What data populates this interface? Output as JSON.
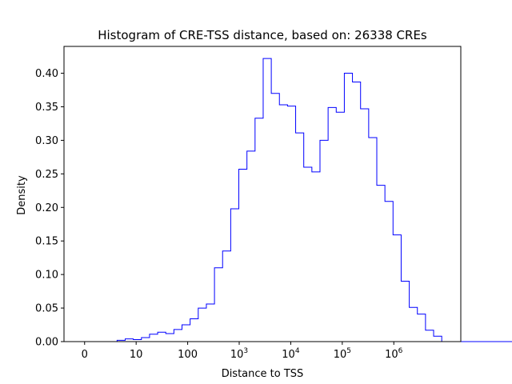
{
  "chart_data": {
    "type": "histogram",
    "title": "Histogram of CRE-TSS distance, based on: 26338 CREs",
    "xlabel": "Distance to TSS",
    "ylabel": "Density",
    "x_scale": "symlog",
    "xlim": [
      -0.4,
      7.3
    ],
    "ylim": [
      0,
      0.44
    ],
    "grid": false,
    "series_color": "#0000ff",
    "x_ticks": [
      {
        "value": 0,
        "label": "0"
      },
      {
        "value": 1,
        "label": "10"
      },
      {
        "value": 2,
        "label": "100"
      },
      {
        "value": 3,
        "label": "10",
        "sup": "3"
      },
      {
        "value": 4,
        "label": "10",
        "sup": "4"
      },
      {
        "value": 5,
        "label": "10",
        "sup": "5"
      },
      {
        "value": 6,
        "label": "10",
        "sup": "6"
      }
    ],
    "y_ticks": [
      {
        "value": 0.0,
        "label": "0.00"
      },
      {
        "value": 0.05,
        "label": "0.05"
      },
      {
        "value": 0.1,
        "label": "0.10"
      },
      {
        "value": 0.15,
        "label": "0.15"
      },
      {
        "value": 0.2,
        "label": "0.20"
      },
      {
        "value": 0.25,
        "label": "0.25"
      },
      {
        "value": 0.3,
        "label": "0.30"
      },
      {
        "value": 0.35,
        "label": "0.35"
      },
      {
        "value": 0.4,
        "label": "0.40"
      }
    ],
    "bin_start": 0.0,
    "bin_width": 0.1575,
    "densities": [
      0.0,
      0.0,
      0.0,
      0.0,
      0.002,
      0.004,
      0.003,
      0.006,
      0.011,
      0.014,
      0.012,
      0.018,
      0.025,
      0.034,
      0.05,
      0.056,
      0.11,
      0.135,
      0.198,
      0.257,
      0.284,
      0.333,
      0.422,
      0.37,
      0.353,
      0.351,
      0.311,
      0.26,
      0.253,
      0.3,
      0.349,
      0.342,
      0.4,
      0.387,
      0.347,
      0.304,
      0.233,
      0.209,
      0.159,
      0.09,
      0.051,
      0.041,
      0.017,
      0.008,
      0.0,
      0.0,
      0.0,
      0.0,
      0.0,
      0.0,
      0.0,
      0.0,
      0.0,
      0.0,
      0.0,
      0.003
    ]
  }
}
